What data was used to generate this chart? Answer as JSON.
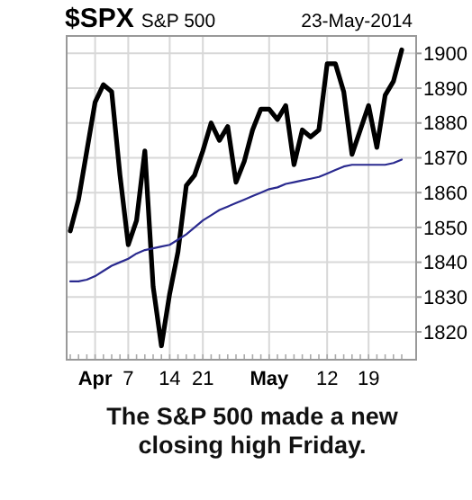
{
  "chart_data": {
    "type": "line",
    "title": "$SPX",
    "subtitle": "S&P 500",
    "annotations": [
      "23-May-2014",
      "The S&P 500 made a new closing high Friday."
    ],
    "categories": [
      null,
      null,
      null,
      "Apr",
      null,
      null,
      null,
      "7",
      null,
      null,
      null,
      null,
      "14",
      null,
      null,
      null,
      "21",
      null,
      null,
      null,
      null,
      null,
      null,
      null,
      "May",
      null,
      null,
      null,
      null,
      null,
      null,
      "12",
      null,
      null,
      null,
      null,
      "19",
      null,
      null,
      null,
      null
    ],
    "series": [
      {
        "color": "#000000",
        "values": [
          1849,
          1858,
          1872,
          1886,
          1891,
          1889,
          1865,
          1845,
          1852,
          1872,
          1833,
          1816,
          1831,
          1843,
          1862,
          1865,
          1872,
          1880,
          1875,
          1879,
          1863,
          1869,
          1878,
          1884,
          1884,
          1881,
          1885,
          1868,
          1878,
          1876,
          1878,
          1897,
          1897,
          1889,
          1871,
          1878,
          1885,
          1873,
          1888,
          1892,
          1901
        ]
      },
      {
        "color": "#2a2a8f",
        "values": [
          1834.5,
          1834.5,
          1835,
          1836,
          1837.5,
          1839,
          1840,
          1841,
          1842.5,
          1843.5,
          1844,
          1844.5,
          1845,
          1846.5,
          1848,
          1850,
          1852,
          1853.5,
          1855,
          1856,
          1857,
          1858,
          1859,
          1860,
          1861,
          1861.5,
          1862.5,
          1863,
          1863.5,
          1864,
          1864.5,
          1865.5,
          1866.5,
          1867.5,
          1868,
          1868,
          1868,
          1868,
          1868,
          1868.5,
          1869.5
        ]
      }
    ],
    "ylim": [
      1812,
      1905
    ],
    "yticks": [
      1820,
      1830,
      1840,
      1850,
      1860,
      1870,
      1880,
      1890,
      1900
    ],
    "grid": true
  }
}
